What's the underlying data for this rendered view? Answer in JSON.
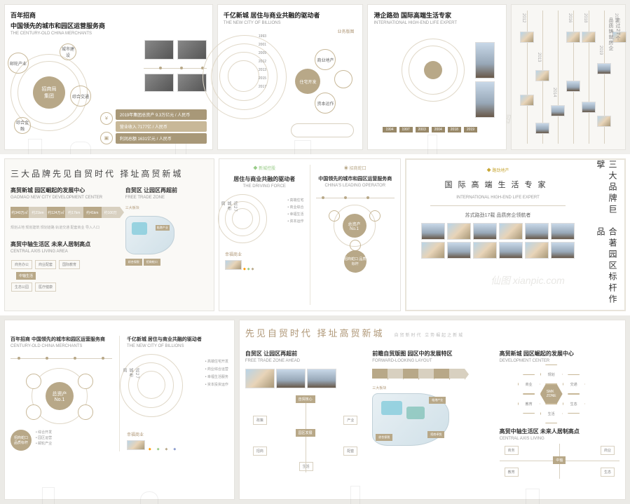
{
  "colors": {
    "accent": "#b8a888",
    "accent_dark": "#988868",
    "line": "#d8d0c0",
    "text": "#333",
    "muted": "#999",
    "bg_row1": "#f0efec",
    "bg_row3": "#ebeae6"
  },
  "watermark": "仙图 xianpic.com",
  "row1": {
    "p1": {
      "title1": "百年招商",
      "title2": "中国领先的城市和园区运营服务商",
      "sub": "THE CENTURY-OLD CHINA MERCHANTS",
      "center_circle": "招商局\n集团",
      "sub_circles": [
        "邮轮产业",
        "综合交通",
        "综合金融",
        "城市建设"
      ],
      "stats": [
        "2019年集团总资产 9.3万亿元 / 人民币",
        "利润总额 1631亿元 / 人民币",
        "营业收入 7177亿 / 人民币"
      ]
    },
    "p2": {
      "title": "千亿新城 居住与商业共融的驱动者",
      "sub": "THE NEW CITY OF BILLIONS",
      "timeline_years": [
        "1993",
        "2001",
        "2009",
        "2012",
        "2013",
        "2015",
        "2017"
      ],
      "circles": [
        "商业地产",
        "住宅开发",
        "资本运作"
      ],
      "right_label": "业务版图"
    },
    "p3": {
      "title": "港企路劲 国际高端生活专家",
      "sub": "INTERNATIONAL HIGH-END LIFE EXPERT",
      "years": [
        "1994",
        "1997",
        "2003",
        "2004",
        "2018",
        "2019"
      ]
    },
    "p4": {
      "side_title": "走过27个\n品质铸就房企",
      "years": [
        "2012",
        "2013",
        "2014",
        "2015",
        "2016",
        "2018",
        "2019",
        "2020",
        "2020"
      ]
    }
  },
  "row2": {
    "left": {
      "heading": "三大品牌先见自贸时代  择址高贸新城",
      "sec1_title": "高贸新城 园区崛起的发展中心",
      "sec1_sub": "GAOMAO NEW CITY DEVELOPMENT CENTER",
      "chevrons": [
        "约340万㎡",
        "约21km",
        "约124万㎡",
        "约17km",
        "约41km",
        "约100万"
      ],
      "sec2_title": "高贸中轴生活区 未来人居制高点",
      "sec2_sub": "CENTRAL AXIS LIVING AREA",
      "right_title": "自贸区 让园区再超前",
      "right_sub": "FREE TRADE ZONE",
      "map_label": "三大板块",
      "badges": [
        "综合保税",
        "临港产业",
        "招商蛇口"
      ]
    },
    "mid": {
      "left_col_title": "居住与商业共融的驱动者",
      "left_sub": "THE DRIVING FORCE",
      "right_col_title": "中国领先的城市和园区运营服务商",
      "right_sub": "CHINA'S LEADING OPERATOR",
      "badge": "总资产\nNo.1",
      "circle_text": "近27\n城布\n局",
      "bottom_labels": [
        "幸福商业",
        "招商蛇口 品质标杆"
      ]
    },
    "right": {
      "title": "国际高端生活专家",
      "sub": "INTERNATIONAL HIGH-END LIFE EXPERT",
      "mid_text": "苏式路劲17载 品质房企领航者",
      "vtext1": "三大品牌巨擘",
      "vtext2": "合著园区标杆作品"
    }
  },
  "row3": {
    "left": {
      "col1_title": "百年招商 中国领先的城市和园区运营服务商",
      "col1_sub": "CENTURY-OLD CHINA MERCHANTS",
      "badge": "总资产\nNo.1",
      "col2_title": "千亿新城 居住与商业共融的驱动者",
      "col2_sub": "THE NEW CITY OF BILLIONS",
      "circle_text": "近27\n城布\n局"
    },
    "right": {
      "heading": "先见自贸时代 择址高贸新城",
      "heading_sub": "自贸新时代 立势崛起之新城",
      "c1_title": "自贸区 让园区再超前",
      "c1_sub": "FREE TRADE ZONE AHEAD",
      "c2_title": "前瞻自贸版图 园区中的发展特区",
      "c2_sub": "FORWARD-LOOKING LAYOUT",
      "c2_map_label": "三大板块",
      "c2_badges": [
        "综合保税",
        "临港产业",
        "招商卓悦"
      ],
      "c3a_title": "高贸新城 园区崛起的发展中心",
      "c3a_sub": "DEVELOPMENT CENTER",
      "c3_hex_center": "SMK\nZONE",
      "c3b_title": "高贸中轴生活区 未来人居制高点",
      "c3b_sub": "CENTRAL AXIS LIVING"
    }
  }
}
